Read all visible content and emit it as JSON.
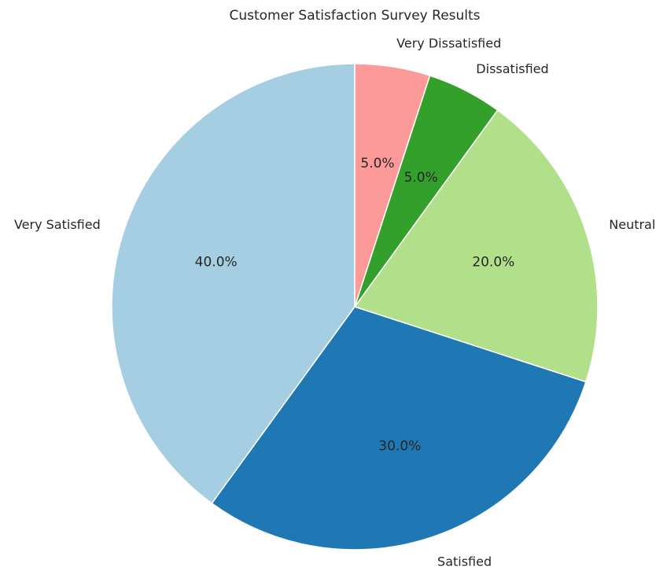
{
  "chart_data": {
    "type": "pie",
    "title": "Customer Satisfaction Survey Results",
    "categories": [
      "Very Satisfied",
      "Satisfied",
      "Neutral",
      "Dissatisfied",
      "Very Dissatisfied"
    ],
    "values": [
      40,
      30,
      20,
      5,
      5
    ],
    "percent_labels": [
      "40.0%",
      "30.0%",
      "20.0%",
      "5.0%",
      "5.0%"
    ],
    "colors": [
      "#a6cee3",
      "#1f78b4",
      "#b2df8a",
      "#33a02c",
      "#fb9a99"
    ],
    "start_angle_deg": 90,
    "direction": "counterclockwise",
    "legend": "none",
    "autopct": "%1.1f%%"
  }
}
